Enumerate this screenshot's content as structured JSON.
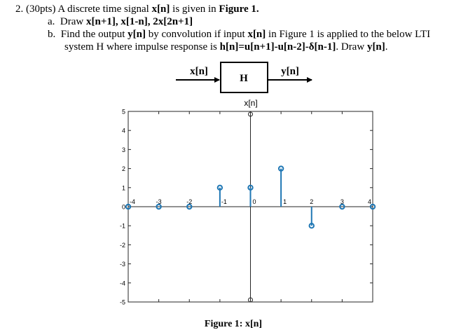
{
  "question": {
    "number": "2.",
    "points": "(30pts)",
    "intro_pre": " A discrete time signal ",
    "intro_signal": "x[n]",
    "intro_mid": " is given in ",
    "intro_figure": "Figure 1.",
    "part_a_marker": "a.",
    "part_a_pre": "Draw ",
    "part_a_bold": "x[n+1], x[1-n], 2x[2n+1]",
    "part_b_marker": "b.",
    "part_b_line1_pre": "Find the output ",
    "part_b_line1_y": "y[n]",
    "part_b_line1_mid": " by convolution if input ",
    "part_b_line1_x": "x[n]",
    "part_b_line1_post": " in Figure 1 is applied to the below LTI",
    "part_b_line2_pre": "system H where impulse response is ",
    "part_b_line2_h": "h[n]=u[n+1]-u[n-2]-δ[n-1]",
    "part_b_line2_mid": ". Draw ",
    "part_b_line2_y": "y[n]",
    "part_b_line2_post": "."
  },
  "block_diagram": {
    "input_label": "x[n]",
    "system_label": "H",
    "output_label": "y[n]"
  },
  "chart_data": {
    "type": "stem",
    "title": "x[n]",
    "caption": "Figure 1: x[n]",
    "xlim": [
      -4,
      4
    ],
    "ylim": [
      -5,
      5
    ],
    "x_ticks": [
      -4,
      -3,
      -2,
      -1,
      0,
      1,
      2,
      3,
      4
    ],
    "y_ticks": [
      5,
      4,
      3,
      2,
      1,
      0,
      -1,
      -2,
      -3,
      -4,
      -5
    ],
    "stem_color": "#1f77b4",
    "series": [
      {
        "x": [
          -4,
          -3,
          -2,
          -1,
          0,
          1,
          2,
          3,
          4
        ],
        "y": [
          0,
          0,
          0,
          1,
          1,
          2,
          -1,
          0,
          0
        ]
      }
    ]
  }
}
